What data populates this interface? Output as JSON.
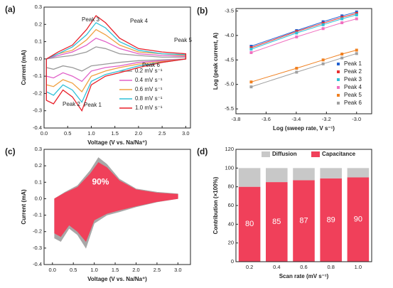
{
  "chart_data": [
    {
      "type": "line",
      "panel_label": "(a)",
      "x_label": "Voltage (V vs. Na/Na⁺)",
      "y_label": "Current (mA)",
      "annotations": [
        "Peak 1",
        "Peak 2",
        "Peak 3",
        "Peak 4",
        "Peak 5",
        "Peak 6"
      ],
      "xlim": [
        0,
        3.1
      ],
      "ylim": [
        -0.4,
        0.3
      ],
      "xticks": [
        {
          "value": 0,
          "label": "0.0"
        },
        0.5,
        {
          "value": 1,
          "label": "1.0"
        },
        1.5,
        {
          "value": 2,
          "label": "2.0"
        },
        2.5,
        {
          "value": 3,
          "label": "3.0"
        }
      ],
      "yticks": [
        -0.4,
        -0.3,
        -0.2,
        -0.1,
        {
          "value": 0,
          "label": "0.0"
        },
        0.1,
        0.2,
        0.3
      ],
      "x": [
        0.05,
        0.3,
        0.6,
        0.9,
        1.1,
        1.3,
        1.6,
        2.0,
        2.5,
        3.0,
        3.0,
        2.5,
        2.0,
        1.6,
        1.3,
        1.0,
        0.8,
        0.6,
        0.4,
        0.2,
        0.05
      ],
      "series": [
        {
          "name": "0.2 mV s⁻¹",
          "color": "#9a9a9a",
          "values": [
            0.0,
            0.01,
            0.02,
            0.04,
            0.07,
            0.06,
            0.03,
            0.02,
            0.01,
            0.01,
            0.0,
            -0.005,
            -0.01,
            -0.02,
            -0.03,
            -0.04,
            -0.07,
            -0.05,
            -0.04,
            -0.06,
            -0.05
          ]
        },
        {
          "name": "0.4 mV s⁻¹",
          "color": "#e060c8",
          "values": [
            0.0,
            0.02,
            0.04,
            0.08,
            0.12,
            0.1,
            0.06,
            0.03,
            0.02,
            0.015,
            0.0,
            -0.01,
            -0.02,
            -0.04,
            -0.05,
            -0.07,
            -0.13,
            -0.1,
            -0.08,
            -0.11,
            -0.1
          ]
        },
        {
          "name": "0.6 mV s⁻¹",
          "color": "#f0a040",
          "values": [
            0.0,
            0.03,
            0.05,
            0.11,
            0.17,
            0.14,
            0.08,
            0.04,
            0.03,
            0.02,
            0.0,
            -0.015,
            -0.03,
            -0.05,
            -0.07,
            -0.1,
            -0.19,
            -0.14,
            -0.12,
            -0.16,
            -0.15
          ]
        },
        {
          "name": "0.8 mV s⁻¹",
          "color": "#30c0d8",
          "values": [
            0.0,
            0.03,
            0.07,
            0.14,
            0.21,
            0.18,
            0.1,
            0.05,
            0.03,
            0.025,
            0.0,
            -0.02,
            -0.04,
            -0.07,
            -0.09,
            -0.13,
            -0.25,
            -0.18,
            -0.15,
            -0.21,
            -0.19
          ]
        },
        {
          "name": "1.0 mV s⁻¹",
          "color": "#e8202a",
          "values": [
            0.0,
            0.04,
            0.08,
            0.17,
            0.25,
            0.21,
            0.12,
            0.06,
            0.04,
            0.03,
            0.0,
            -0.02,
            -0.05,
            -0.08,
            -0.1,
            -0.15,
            -0.3,
            -0.22,
            -0.18,
            -0.26,
            -0.24
          ]
        }
      ]
    },
    {
      "type": "scatter",
      "panel_label": "(b)",
      "x_label": "Log (sweep rate, V s⁻¹)",
      "y_label": "Log (peak current, A)",
      "xlim": [
        -3.8,
        -2.9
      ],
      "ylim": [
        -5.6,
        -3.45
      ],
      "xticks": [
        -3.8,
        -3.6,
        -3.4,
        -3.2,
        {
          "value": -3,
          "label": "-3.0"
        }
      ],
      "yticks": [
        -5.5,
        {
          "value": -5,
          "label": "-5.0"
        },
        -4.5,
        {
          "value": -4,
          "label": "-4.0"
        },
        -3.5
      ],
      "x": [
        -3.699,
        -3.398,
        -3.222,
        -3.097,
        -3.0
      ],
      "series": [
        {
          "name": "Peak 1",
          "color": "#2060d0",
          "values": [
            -4.22,
            -3.9,
            -3.72,
            -3.6,
            -3.52
          ]
        },
        {
          "name": "Peak 2",
          "color": "#e83030",
          "values": [
            -4.25,
            -3.92,
            -3.75,
            -3.63,
            -3.55
          ]
        },
        {
          "name": "Peak 3",
          "color": "#30c0d8",
          "values": [
            -4.28,
            -3.95,
            -3.78,
            -3.66,
            -3.58
          ]
        },
        {
          "name": "Peak 4",
          "color": "#f070c0",
          "values": [
            -4.35,
            -4.03,
            -3.86,
            -3.74,
            -3.66
          ]
        },
        {
          "name": "Peak 5",
          "color": "#f08020",
          "values": [
            -4.95,
            -4.67,
            -4.5,
            -4.38,
            -4.3
          ]
        },
        {
          "name": "Peak 6",
          "color": "#a0a0a0",
          "values": [
            -5.05,
            -4.75,
            -4.58,
            -4.46,
            -4.37
          ]
        }
      ]
    },
    {
      "type": "area",
      "panel_label": "(c)",
      "x_label": "Voltage (V vs. Na/Na⁺)",
      "y_label": "Current (mA)",
      "annotation": "90%",
      "xlim": [
        -0.2,
        3.3
      ],
      "ylim": [
        -0.4,
        0.3
      ],
      "xticks": [
        {
          "value": 0,
          "label": "0.0"
        },
        0.5,
        {
          "value": 1,
          "label": "1.0"
        },
        1.5,
        {
          "value": 2,
          "label": "2.0"
        },
        2.5,
        {
          "value": 3,
          "label": "3.0"
        }
      ],
      "yticks": [
        -0.4,
        -0.3,
        -0.2,
        -0.1,
        {
          "value": 0,
          "label": "0.0"
        },
        0.1,
        0.2,
        0.3
      ],
      "x": [
        0.05,
        0.3,
        0.6,
        0.9,
        1.1,
        1.3,
        1.6,
        2.0,
        2.5,
        3.0,
        3.0,
        2.5,
        2.0,
        1.6,
        1.3,
        1.0,
        0.8,
        0.6,
        0.4,
        0.2,
        0.05
      ],
      "series": [
        {
          "color": "#a8a8a8",
          "values": [
            0.0,
            0.04,
            0.08,
            0.17,
            0.25,
            0.21,
            0.12,
            0.06,
            0.04,
            0.03,
            0.0,
            -0.02,
            -0.05,
            -0.08,
            -0.1,
            -0.15,
            -0.3,
            -0.22,
            -0.18,
            -0.26,
            -0.24
          ]
        },
        {
          "color": "#f0405a",
          "values": [
            0.0,
            0.035,
            0.07,
            0.15,
            0.22,
            0.19,
            0.11,
            0.055,
            0.035,
            0.027,
            0.0,
            -0.018,
            -0.045,
            -0.07,
            -0.09,
            -0.13,
            -0.26,
            -0.2,
            -0.16,
            -0.23,
            -0.21
          ]
        }
      ]
    },
    {
      "type": "stacked_bar",
      "panel_label": "(d)",
      "x_label": "Scan rate (mV s⁻¹)",
      "y_label": "Contribution (×100%)",
      "ylim": [
        0,
        120
      ],
      "yticks": [
        0,
        20,
        40,
        60,
        80,
        100,
        120
      ],
      "categories": [
        "0.2",
        "0.4",
        "0.6",
        "0.8",
        "1.0"
      ],
      "series": [
        {
          "name": "Capacitance",
          "color": "#f0405a",
          "values": [
            80,
            85,
            87,
            89,
            90
          ]
        },
        {
          "name": "Diffusion",
          "color": "#c8c8c8",
          "values": [
            20,
            15,
            13,
            11,
            10
          ]
        }
      ]
    }
  ]
}
